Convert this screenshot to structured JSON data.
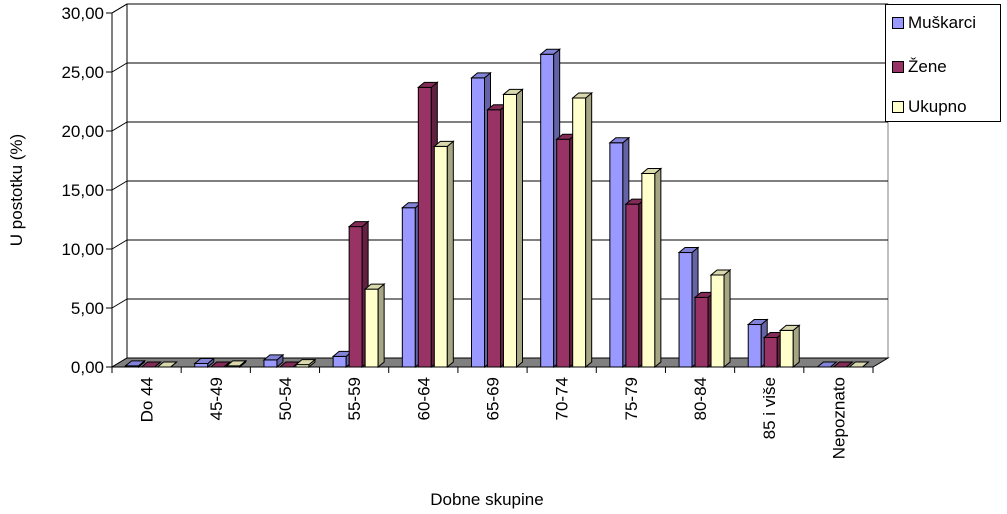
{
  "chart_data": {
    "type": "bar",
    "xlabel": "Dobne skupine",
    "ylabel": "U postotku (%)",
    "ylim": [
      0,
      30
    ],
    "y_ticks": [
      "0,00",
      "5,00",
      "10,00",
      "15,00",
      "20,00",
      "25,00",
      "30,00"
    ],
    "categories": [
      "Do 44",
      "45-49",
      "50-54",
      "55-59",
      "60-64",
      "65-69",
      "70-74",
      "75-79",
      "80-84",
      "85 i više",
      "Nepoznato"
    ],
    "grid": true,
    "legend_position": "top-right",
    "series": [
      {
        "name": "Muškarci",
        "color": "#9999FF",
        "values": [
          0.1,
          0.3,
          0.6,
          0.9,
          13.5,
          24.5,
          26.5,
          19.0,
          9.7,
          3.6,
          0.0
        ]
      },
      {
        "name": "Žene",
        "color": "#993366",
        "values": [
          0.0,
          0.0,
          0.0,
          11.9,
          23.7,
          21.8,
          19.3,
          13.8,
          5.9,
          2.5,
          0.0
        ]
      },
      {
        "name": "Ukupno",
        "color": "#FFFFCC",
        "values": [
          0.0,
          0.1,
          0.2,
          6.6,
          18.7,
          23.1,
          22.8,
          16.4,
          7.8,
          3.1,
          0.0
        ]
      }
    ]
  }
}
